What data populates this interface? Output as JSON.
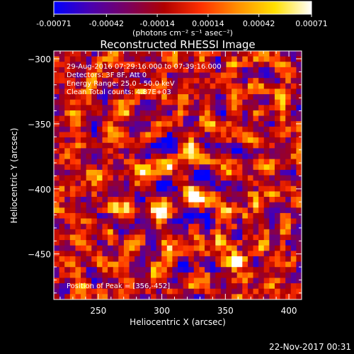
{
  "colorbar": {
    "tick_labels": [
      "-0.00071",
      "-0.00042",
      "-0.00014",
      "0.00014",
      "0.00042",
      "0.00071"
    ],
    "tick_values": [
      -0.00071,
      -0.00042,
      -0.00014,
      0.00014,
      0.00042,
      0.00071
    ],
    "range": [
      -0.00071,
      0.00071
    ],
    "unit_label": "(photons cm⁻² s⁻¹ asec⁻²)",
    "colormap": [
      "#0000ff",
      "#4a00b0",
      "#7a0060",
      "#b00000",
      "#ff3000",
      "#ff9000",
      "#ffe000",
      "#ffffff"
    ]
  },
  "chart_data": {
    "type": "heatmap",
    "title": "Reconstructed RHESSI Image",
    "xlabel": "Heliocentric X (arcsec)",
    "ylabel": "Heliocentric Y (arcsec)",
    "xlim": [
      215,
      410
    ],
    "ylim": [
      -485,
      -294
    ],
    "xticks": [
      250,
      300,
      350,
      400
    ],
    "yticks": [
      -300,
      -350,
      -400,
      -450
    ],
    "xtick_labels": [
      "250",
      "300",
      "350",
      "400"
    ],
    "ytick_labels": [
      "−300",
      "−350",
      "−400",
      "−450"
    ],
    "annotations": [
      "29-Aug-2016 07:29:16.000 to 07:39:16.000",
      "Detectors: 3F 8F, Att 0",
      "Energy Range: 25.0 - 50.0 keV",
      "Clean     Total counts: 4.87E+03"
    ],
    "peak_label": "Position of Peak = [356,-452]",
    "peak": [
      356,
      -452
    ]
  },
  "footer": {
    "timestamp": "22-Nov-2017 00:31"
  }
}
